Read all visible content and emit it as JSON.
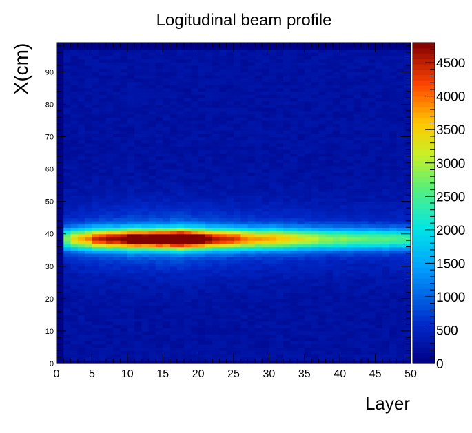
{
  "chart_data": {
    "type": "heatmap",
    "title": "Logitudinal beam profile",
    "xlabel": "Layer",
    "ylabel": "X(cm)",
    "xlim": [
      0,
      50
    ],
    "ylim": [
      0,
      99
    ],
    "x_ticks": [
      "0",
      "5",
      "10",
      "15",
      "20",
      "25",
      "30",
      "35",
      "40",
      "45",
      "50"
    ],
    "y_ticks": [
      "0",
      "10",
      "20",
      "30",
      "40",
      "50",
      "60",
      "70",
      "80",
      "90"
    ],
    "z_range": [
      0,
      4800
    ],
    "z_ticks": [
      "0",
      "500",
      "1000",
      "1500",
      "2000",
      "2500",
      "3000",
      "3500",
      "4000",
      "4500"
    ],
    "colormap": "jet",
    "grid": false,
    "x_bins": {
      "count": 50,
      "min": 0,
      "max": 50
    },
    "y_bins": {
      "count": 99,
      "min": 0,
      "max": 99
    },
    "beam_center_x_cm": 38.5,
    "layer_peak_counts": [
      1500,
      2200,
      2700,
      2900,
      3100,
      3500,
      3600,
      3800,
      3800,
      4000,
      4300,
      4300,
      4200,
      4400,
      4500,
      4400,
      4700,
      4800,
      4500,
      4300,
      4200,
      3900,
      3700,
      3600,
      3500,
      3400,
      3200,
      3100,
      3000,
      3000,
      3000,
      2900,
      2800,
      2700,
      2600,
      2500,
      2400,
      2300,
      2250,
      2200,
      2200,
      2150,
      2100,
      2100,
      2050,
      2000,
      2000,
      1950,
      1950,
      1900
    ],
    "background_counts": 250
  }
}
